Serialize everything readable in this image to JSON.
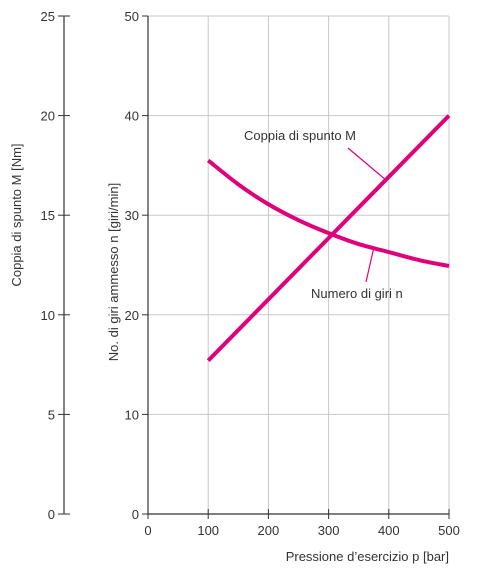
{
  "chart_data": {
    "type": "line",
    "xlabel": "Pressione d’esercizio p [bar]",
    "ylabel_left": "Coppia di spunto M [Nm]",
    "ylabel_right": "No. di giri ammesso n [giri/min]",
    "xlim": [
      0,
      500
    ],
    "ylim_left": [
      0,
      25
    ],
    "ylim_right": [
      0,
      50
    ],
    "x_ticks": [
      "0",
      "100",
      "200",
      "300",
      "400",
      "500"
    ],
    "y_ticks_left": [
      "0",
      "5",
      "10",
      "15",
      "20",
      "25"
    ],
    "y_ticks_right": [
      "0",
      "10",
      "20",
      "30",
      "40",
      "50"
    ],
    "grid": true,
    "line_color": "#e0007a",
    "series": [
      {
        "name": "Coppia di spunto M",
        "axis": "left",
        "x": [
          100,
          500
        ],
        "y": [
          7.7,
          20
        ]
      },
      {
        "name": "Numero di giri n",
        "axis": "right",
        "x": [
          100,
          150,
          200,
          250,
          300,
          350,
          400,
          450,
          500
        ],
        "y": [
          35.5,
          33.1,
          31.1,
          29.5,
          28.2,
          27.1,
          26.3,
          25.5,
          24.9
        ]
      }
    ],
    "annotations": [
      {
        "text": "Coppia di spunto M",
        "series": 0,
        "pointer_x": 395
      },
      {
        "text": "Numero di giri n",
        "series": 1,
        "pointer_x": 375
      }
    ]
  }
}
